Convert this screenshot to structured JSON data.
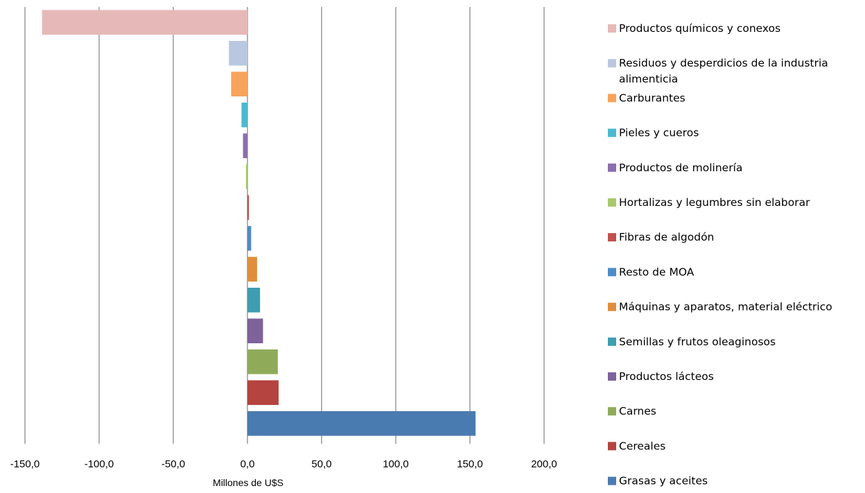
{
  "chart_data": {
    "type": "bar",
    "orientation": "horizontal",
    "xlabel": "Millones de U$S",
    "xlim": [
      -150,
      200
    ],
    "xticks": [
      -150,
      -100,
      -50,
      0,
      50,
      100,
      150,
      200
    ],
    "xtick_labels": [
      "-150,0",
      "-100,0",
      "-50,0",
      "0,0",
      "50,0",
      "100,0",
      "150,0",
      "200,0"
    ],
    "grid": true,
    "legend_position": "right",
    "categories": [
      "Productos químicos y conexos",
      "Residuos y desperdicios de la industria alimenticia",
      "Carburantes",
      "Pieles y cueros",
      "Productos de molinería",
      "Hortalizas y legumbres sin elaborar",
      "Fibras de algodón",
      "Resto de MOA",
      "Máquinas y aparatos, material eléctrico",
      "Semillas y frutos oleaginosos",
      "Productos lácteos",
      "Carnes",
      "Cereales",
      "Grasas y aceites"
    ],
    "legend_lines": [
      [
        "Productos químicos y conexos"
      ],
      [
        "Residuos y desperdicios de la industria",
        "alimenticia"
      ],
      [
        "Carburantes"
      ],
      [
        "Pieles y cueros"
      ],
      [
        "Productos de molinería"
      ],
      [
        "Hortalizas y legumbres sin elaborar"
      ],
      [
        "Fibras de algodón"
      ],
      [
        "Resto de MOA"
      ],
      [
        "Máquinas y aparatos, material eléctrico"
      ],
      [
        "Semillas y frutos oleaginosos"
      ],
      [
        "Productos lácteos"
      ],
      [
        "Carnes"
      ],
      [
        "Cereales"
      ],
      [
        "Grasas y aceites"
      ]
    ],
    "values": [
      -138.5,
      -12.5,
      -11.0,
      -4.0,
      -3.0,
      -1.0,
      1.0,
      2.5,
      6.5,
      8.5,
      10.5,
      20.5,
      21.0,
      153.8
    ],
    "colors": [
      "#e6b9b8",
      "#b9c8e0",
      "#f7a35c",
      "#4bbad0",
      "#8b6fae",
      "#a9c96b",
      "#c0504d",
      "#4f8bc9",
      "#e08e3c",
      "#3f9db1",
      "#7e629a",
      "#8fab5a",
      "#b5433f",
      "#4a7bb0"
    ]
  }
}
